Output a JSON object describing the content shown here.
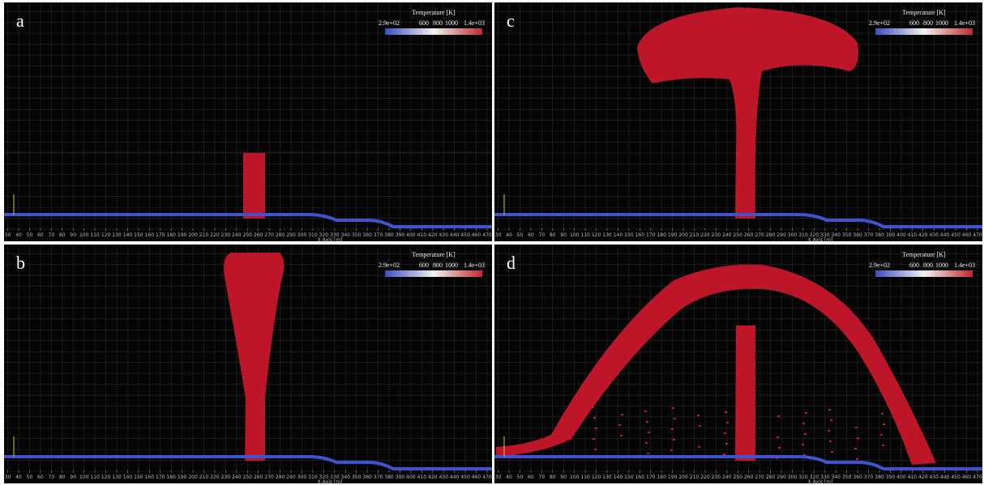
{
  "panels": [
    {
      "label": "a"
    },
    {
      "label": "c"
    },
    {
      "label": "b"
    },
    {
      "label": "d"
    }
  ],
  "colorbar": {
    "title": "Temperature [K]",
    "ticks": [
      "2.9e+02",
      "600",
      "800",
      "1000",
      "1.4e+03"
    ]
  },
  "x_axis": {
    "label": "X Axis [m]",
    "ticks": [
      30,
      40,
      50,
      60,
      70,
      80,
      90,
      100,
      110,
      120,
      130,
      140,
      150,
      160,
      170,
      180,
      190,
      200,
      210,
      220,
      230,
      240,
      250,
      260,
      270,
      280,
      290,
      300,
      310,
      320,
      330,
      340,
      350,
      360,
      370,
      380,
      390,
      400,
      410,
      420,
      430,
      440,
      450,
      460,
      470
    ]
  }
}
